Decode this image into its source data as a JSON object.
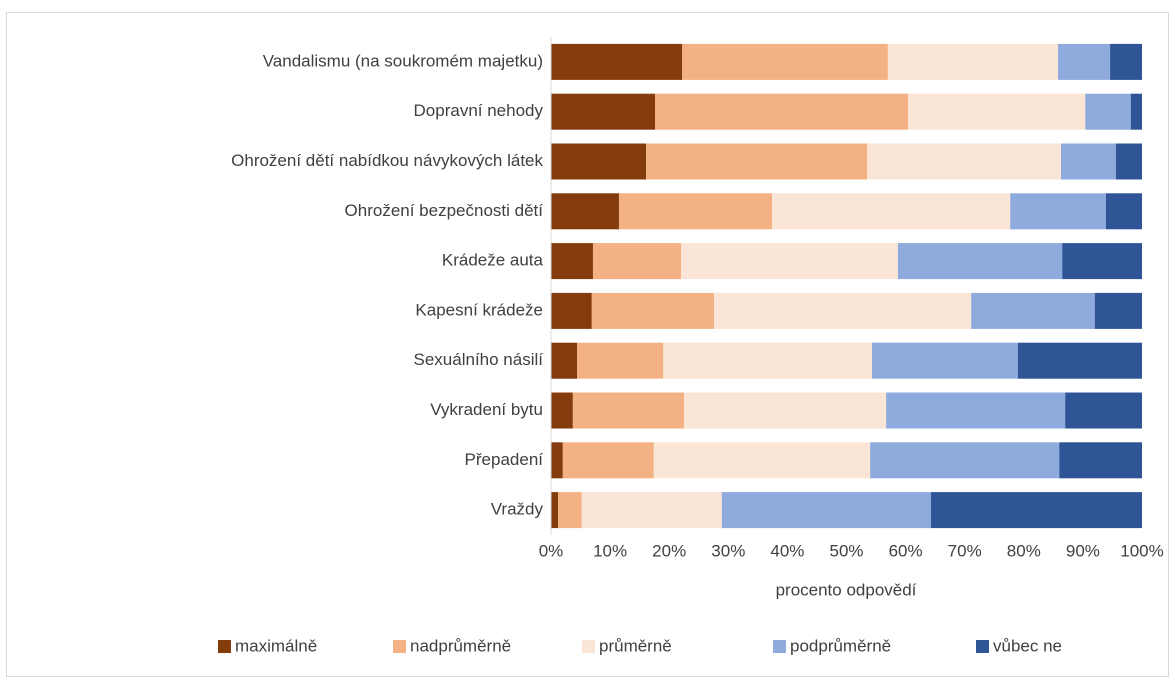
{
  "chart_data": {
    "type": "stacked-barh",
    "categories": [
      "Vandalismu (na soukromém majetku)",
      "Dopravní nehody",
      "Ohrožení dětí nabídkou návykových látek",
      "Ohrožení bezpečnosti dětí",
      "Krádeže auta",
      "Kapesní krádeže",
      "Sexuálního násilí",
      "Vykradení bytu",
      "Přepadení",
      "Vraždy"
    ],
    "series": [
      {
        "name": "maximálně",
        "color": "#843c0c",
        "values": [
          22.2,
          17.6,
          16.1,
          11.5,
          7.1,
          6.9,
          4.4,
          3.7,
          2.0,
          1.2
        ]
      },
      {
        "name": "nadprůměrně",
        "color": "#f4b183",
        "values": [
          34.8,
          42.8,
          37.4,
          25.9,
          14.9,
          20.7,
          14.6,
          18.8,
          15.4,
          4.0
        ]
      },
      {
        "name": "průměrně",
        "color": "#fbe5d6",
        "values": [
          28.8,
          30.0,
          32.8,
          40.3,
          36.7,
          43.5,
          35.3,
          34.2,
          36.6,
          23.7
        ]
      },
      {
        "name": "podprůměrně",
        "color": "#8faadc",
        "values": [
          8.8,
          7.7,
          9.3,
          16.2,
          27.8,
          20.9,
          24.7,
          30.3,
          32.0,
          35.4
        ]
      },
      {
        "name": "vůbec ne",
        "color": "#2f5597",
        "values": [
          5.4,
          1.9,
          4.4,
          6.1,
          13.5,
          8.0,
          21.0,
          13.0,
          14.0,
          35.7
        ]
      }
    ],
    "xlabel": "procento odpovědí",
    "xlim": [
      0,
      100
    ],
    "xticks": [
      {
        "value": 0,
        "label": "0%"
      },
      {
        "value": 10,
        "label": "10%"
      },
      {
        "value": 20,
        "label": "20%"
      },
      {
        "value": 30,
        "label": "30%"
      },
      {
        "value": 40,
        "label": "40%"
      },
      {
        "value": 50,
        "label": "50%"
      },
      {
        "value": 60,
        "label": "60%"
      },
      {
        "value": 70,
        "label": "70%"
      },
      {
        "value": 80,
        "label": "80%"
      },
      {
        "value": 90,
        "label": "90%"
      },
      {
        "value": 100,
        "label": "100%"
      }
    ],
    "legend": "bottom"
  }
}
